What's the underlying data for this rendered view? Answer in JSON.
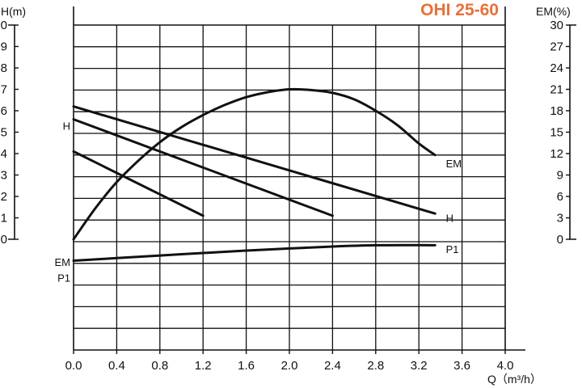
{
  "chart_data": {
    "type": "line",
    "title": "OHI 25-60",
    "title_color": "#E8703A",
    "xlabel": "Q（m³/h）",
    "ylabel_left": "H(m)",
    "ylabel_right": "EM(%)",
    "xlim": [
      0,
      4.0
    ],
    "ylim_left": [
      0,
      10
    ],
    "ylim_right": [
      0,
      30
    ],
    "x_ticks": [
      "0.0",
      "0.4",
      "0.8",
      "1.2",
      "1.6",
      "2.0",
      "2.4",
      "2.8",
      "3.2",
      "3.6",
      "4.0"
    ],
    "y_left_ticks": [
      "0",
      "1",
      "2",
      "3",
      "4",
      "5",
      "6",
      "7",
      "8",
      "9",
      "10"
    ],
    "y_right_ticks": [
      "0",
      "3",
      "6",
      "9",
      "12",
      "15",
      "18",
      "21",
      "24",
      "27",
      "30"
    ],
    "grid": true,
    "line_color": "#111111",
    "series": [
      {
        "name": "H",
        "axis": "left",
        "x": [
          0,
          1.2
        ],
        "y": [
          4.1,
          1.1
        ]
      },
      {
        "name": "H",
        "axis": "left",
        "x": [
          0,
          2.4
        ],
        "y": [
          5.6,
          1.1
        ]
      },
      {
        "name": "H",
        "axis": "left",
        "x": [
          0,
          3.35
        ],
        "y": [
          6.2,
          1.2
        ]
      },
      {
        "name": "EM",
        "axis": "right",
        "x": [
          0,
          0.2,
          0.4,
          0.6,
          0.8,
          1.0,
          1.2,
          1.4,
          1.6,
          1.8,
          2.0,
          2.2,
          2.4,
          2.6,
          2.8,
          3.0,
          3.2,
          3.35
        ],
        "y": [
          0,
          4.3,
          8.0,
          11.0,
          13.6,
          15.7,
          17.4,
          18.8,
          19.9,
          20.6,
          21.0,
          20.9,
          20.5,
          19.6,
          18.0,
          16.0,
          13.4,
          11.8
        ]
      },
      {
        "name": "P1",
        "axis": "p1",
        "x": [
          0,
          0.4,
          0.8,
          1.2,
          1.6,
          2.0,
          2.4,
          2.8,
          3.2,
          3.35
        ],
        "y": [
          -1.0,
          -0.88,
          -0.76,
          -0.64,
          -0.53,
          -0.43,
          -0.34,
          -0.28,
          -0.27,
          -0.28
        ]
      }
    ],
    "curve_labels": [
      {
        "text": "H",
        "side": "left",
        "x": 0,
        "y": 5.3
      },
      {
        "text": "EM",
        "side": "right",
        "x": 3.45,
        "y": 3.55
      },
      {
        "text": "H",
        "side": "right",
        "x": 3.45,
        "y": 1.0
      },
      {
        "text": "P1",
        "side": "right",
        "x": 3.45,
        "y": -0.45
      },
      {
        "text": "EM",
        "side": "left",
        "x": 0,
        "y": -1.05
      },
      {
        "text": "P1",
        "side": "left",
        "x": 0,
        "y": -1.8
      }
    ]
  }
}
